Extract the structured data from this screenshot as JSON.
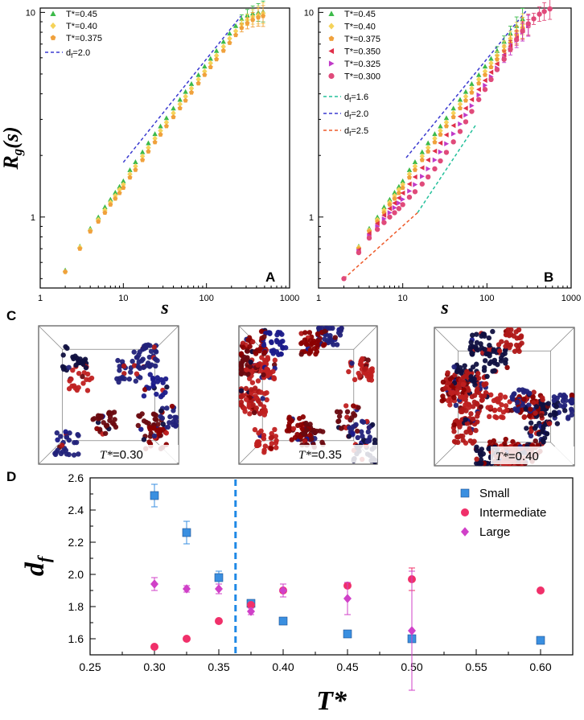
{
  "chart_data": [
    {
      "id": "A",
      "type": "scatter",
      "panel_label": "A",
      "xlabel": "s",
      "ylabel": "R",
      "ylabel_sub": "g",
      "ylabel_suffix": "(s)",
      "xscale": "log",
      "yscale": "log",
      "xlim": [
        1,
        1000
      ],
      "ylim": [
        0.45,
        10.5
      ],
      "xticks": [
        "1",
        "10",
        "100",
        "1000"
      ],
      "yticks": [
        "1",
        "10"
      ],
      "legend_position": "top-left",
      "series": [
        {
          "name": "T*=0.45",
          "marker": "triangle",
          "color": "#3cba4a",
          "x": [
            2,
            3,
            4,
            5,
            6,
            7,
            8,
            9,
            10,
            12,
            14,
            17,
            20,
            24,
            28,
            33,
            40,
            48,
            56,
            66,
            80,
            95,
            112,
            132,
            160,
            190,
            225,
            265,
            310,
            360,
            420,
            480
          ],
          "y": [
            0.55,
            0.72,
            0.88,
            1.0,
            1.12,
            1.22,
            1.32,
            1.41,
            1.5,
            1.7,
            1.86,
            2.08,
            2.3,
            2.55,
            2.78,
            3.05,
            3.4,
            3.75,
            4.1,
            4.48,
            4.95,
            5.45,
            5.95,
            6.5,
            7.2,
            7.9,
            8.6,
            9.3,
            9.7,
            9.9,
            10.0,
            10.1
          ]
        },
        {
          "name": "T*=0.40",
          "marker": "diamond",
          "color": "#f5d35a",
          "x": [
            2,
            3,
            4,
            5,
            6,
            7,
            8,
            9,
            10,
            12,
            14,
            17,
            20,
            24,
            28,
            33,
            40,
            48,
            56,
            66,
            80,
            95,
            112,
            132,
            160,
            190,
            225,
            265,
            310,
            360,
            420,
            480
          ],
          "y": [
            0.54,
            0.71,
            0.86,
            0.97,
            1.08,
            1.18,
            1.27,
            1.36,
            1.44,
            1.62,
            1.77,
            1.98,
            2.18,
            2.42,
            2.64,
            2.9,
            3.22,
            3.56,
            3.88,
            4.25,
            4.7,
            5.15,
            5.65,
            6.15,
            6.8,
            7.45,
            8.1,
            8.75,
            9.2,
            9.5,
            9.7,
            9.9
          ]
        },
        {
          "name": "T*=0.375",
          "marker": "pentagon",
          "color": "#f0a13c",
          "x": [
            2,
            3,
            4,
            5,
            6,
            7,
            8,
            9,
            10,
            12,
            14,
            17,
            20,
            24,
            28,
            33,
            40,
            48,
            56,
            66,
            80,
            95,
            112,
            132,
            160,
            190,
            225,
            265,
            310,
            360,
            420,
            480
          ],
          "y": [
            0.54,
            0.7,
            0.85,
            0.95,
            1.05,
            1.15,
            1.23,
            1.31,
            1.39,
            1.56,
            1.7,
            1.9,
            2.09,
            2.32,
            2.53,
            2.78,
            3.08,
            3.4,
            3.71,
            4.06,
            4.5,
            4.95,
            5.4,
            5.9,
            6.5,
            7.1,
            7.75,
            8.4,
            8.85,
            9.2,
            9.45,
            9.6
          ]
        }
      ],
      "ref_lines": [
        {
          "name": "d_f=2.0",
          "label_main": "d",
          "label_sub": "f",
          "label_tail": "=2.0",
          "color": "#3a3ad0",
          "x": [
            10,
            260
          ],
          "y": [
            1.85,
            9.6
          ]
        }
      ]
    },
    {
      "id": "B",
      "type": "scatter",
      "panel_label": "B",
      "xlabel": "s",
      "xscale": "log",
      "yscale": "log",
      "xlim": [
        1,
        1000
      ],
      "ylim": [
        0.45,
        10.5
      ],
      "xticks": [
        "1",
        "10",
        "100",
        "1000"
      ],
      "yticks": [
        "1",
        "10"
      ],
      "legend_position": "top-left",
      "series": [
        {
          "name": "T*=0.45",
          "marker": "triangle",
          "color": "#3cba4a",
          "x": [
            3,
            4,
            5,
            6,
            7,
            8,
            9,
            10,
            12,
            14,
            17,
            20,
            24,
            28,
            33,
            40,
            48,
            56,
            66,
            80,
            95,
            112,
            132,
            160,
            190,
            225,
            265
          ],
          "y": [
            0.72,
            0.88,
            1.0,
            1.12,
            1.22,
            1.32,
            1.41,
            1.5,
            1.7,
            1.86,
            2.08,
            2.3,
            2.55,
            2.78,
            3.05,
            3.4,
            3.75,
            4.1,
            4.48,
            4.95,
            5.45,
            5.95,
            6.5,
            7.2,
            7.9,
            8.6,
            9.3
          ]
        },
        {
          "name": "T*=0.40",
          "marker": "diamond",
          "color": "#f5d35a",
          "x": [
            3,
            4,
            5,
            6,
            7,
            8,
            9,
            10,
            12,
            14,
            17,
            20,
            24,
            28,
            33,
            40,
            48,
            56,
            66,
            80,
            95,
            112,
            132,
            160,
            190,
            225,
            265
          ],
          "y": [
            0.71,
            0.86,
            0.97,
            1.08,
            1.18,
            1.27,
            1.36,
            1.44,
            1.62,
            1.77,
            1.98,
            2.18,
            2.42,
            2.64,
            2.9,
            3.22,
            3.56,
            3.88,
            4.25,
            4.7,
            5.15,
            5.65,
            6.15,
            6.8,
            7.45,
            8.1,
            8.75
          ]
        },
        {
          "name": "T*=0.375",
          "marker": "pentagon",
          "color": "#f0a13c",
          "x": [
            3,
            4,
            5,
            6,
            7,
            8,
            9,
            10,
            12,
            14,
            17,
            20,
            24,
            28,
            33,
            40,
            48,
            56,
            66,
            80,
            95,
            112,
            132,
            160,
            190,
            225,
            265
          ],
          "y": [
            0.7,
            0.85,
            0.95,
            1.05,
            1.15,
            1.23,
            1.31,
            1.39,
            1.56,
            1.7,
            1.9,
            2.09,
            2.32,
            2.53,
            2.78,
            3.08,
            3.4,
            3.71,
            4.06,
            4.5,
            4.95,
            5.4,
            5.9,
            6.5,
            7.1,
            7.75,
            8.4
          ]
        },
        {
          "name": "T*=0.350",
          "marker": "triangle-left",
          "color": "#e0304a",
          "x": [
            3,
            4,
            5,
            6,
            7,
            8,
            9,
            10,
            12,
            14,
            17,
            20,
            24,
            28,
            33,
            40,
            48,
            56,
            66,
            80,
            95,
            112,
            132,
            160,
            190,
            225,
            265,
            310
          ],
          "y": [
            0.69,
            0.83,
            0.93,
            1.02,
            1.1,
            1.17,
            1.24,
            1.31,
            1.45,
            1.57,
            1.74,
            1.9,
            2.1,
            2.3,
            2.52,
            2.8,
            3.1,
            3.4,
            3.75,
            4.2,
            4.65,
            5.1,
            5.6,
            6.2,
            6.85,
            7.5,
            8.15,
            8.7
          ]
        },
        {
          "name": "T*=0.325",
          "marker": "triangle-right",
          "color": "#c03ac8",
          "x": [
            3,
            4,
            5,
            6,
            7,
            8,
            9,
            10,
            12,
            14,
            17,
            20,
            24,
            28,
            33,
            40,
            48,
            56,
            66,
            80,
            95,
            112,
            132,
            160,
            190,
            225,
            265,
            310
          ],
          "y": [
            0.68,
            0.81,
            0.9,
            0.98,
            1.05,
            1.11,
            1.17,
            1.22,
            1.34,
            1.44,
            1.58,
            1.72,
            1.9,
            2.08,
            2.28,
            2.55,
            2.85,
            3.15,
            3.5,
            3.95,
            4.4,
            4.85,
            5.35,
            5.95,
            6.6,
            7.3,
            8.0,
            8.6
          ]
        },
        {
          "name": "T*=0.300",
          "marker": "circle",
          "color": "#e04a7a",
          "x": [
            2,
            3,
            4,
            5,
            6,
            7,
            8,
            9,
            10,
            12,
            14,
            17,
            20,
            24,
            28,
            33,
            40,
            48,
            56,
            66,
            80,
            95,
            112,
            132,
            160,
            190,
            225,
            265,
            310,
            360,
            420,
            480,
            560
          ],
          "y": [
            0.5,
            0.67,
            0.79,
            0.87,
            0.94,
            1.0,
            1.05,
            1.1,
            1.15,
            1.25,
            1.33,
            1.45,
            1.57,
            1.72,
            1.88,
            2.07,
            2.33,
            2.62,
            2.92,
            3.28,
            3.75,
            4.2,
            4.7,
            5.25,
            5.9,
            6.6,
            7.35,
            8.1,
            8.8,
            9.3,
            9.8,
            10.1,
            10.4
          ]
        }
      ],
      "ref_lines": [
        {
          "name": "d_f=1.6",
          "label_main": "d",
          "label_sub": "f",
          "label_tail": "=1.6",
          "color": "#22c09a",
          "x": [
            15,
            75
          ],
          "y": [
            1.05,
            2.85
          ]
        },
        {
          "name": "d_f=2.0",
          "label_main": "d",
          "label_sub": "f",
          "label_tail": "=2.0",
          "color": "#3a3ad0",
          "x": [
            11,
            300
          ],
          "y": [
            1.95,
            10.3
          ]
        },
        {
          "name": "d_f=2.5",
          "label_main": "d",
          "label_sub": "f",
          "label_tail": "=2.5",
          "color": "#ee5a2a",
          "x": [
            2,
            15
          ],
          "y": [
            0.5,
            1.05
          ]
        }
      ]
    },
    {
      "id": "D",
      "type": "scatter",
      "panel_label": "D",
      "xlabel": "T*",
      "ylabel": "d",
      "ylabel_sub": "f",
      "xlim": [
        0.25,
        0.625
      ],
      "ylim": [
        1.5,
        2.6
      ],
      "xticks": [
        "0.25",
        "0.30",
        "0.35",
        "0.40",
        "0.45",
        "0.50",
        "0.55",
        "0.60"
      ],
      "yticks": [
        "1.6",
        "1.8",
        "2.0",
        "2.2",
        "2.4",
        "2.6"
      ],
      "vline": {
        "x": 0.363,
        "color": "#1e88e5"
      },
      "legend_position": "top-right",
      "series": [
        {
          "name": "Small",
          "marker": "square",
          "color": "#3a8fe0",
          "x": [
            0.3,
            0.325,
            0.35,
            0.375,
            0.4,
            0.45,
            0.5,
            0.6
          ],
          "y": [
            2.49,
            2.26,
            1.98,
            1.82,
            1.71,
            1.63,
            1.6,
            1.59
          ],
          "err": [
            0.07,
            0.07,
            0.04,
            0.02,
            0.01,
            0.01,
            0.02,
            0.02
          ]
        },
        {
          "name": "Intermediate",
          "marker": "circle",
          "color": "#f0306a",
          "x": [
            0.3,
            0.325,
            0.35,
            0.375,
            0.4,
            0.45,
            0.5,
            0.6
          ],
          "y": [
            1.55,
            1.6,
            1.71,
            1.81,
            1.9,
            1.93,
            1.97,
            1.9
          ],
          "err": [
            0.0,
            0.0,
            0.0,
            0.0,
            0.0,
            0.0,
            0.07,
            0.0
          ]
        },
        {
          "name": "Large",
          "marker": "diamond",
          "color": "#d040c8",
          "x": [
            0.3,
            0.325,
            0.35,
            0.375,
            0.4,
            0.45,
            0.5
          ],
          "y": [
            1.94,
            1.91,
            1.91,
            1.77,
            1.9,
            1.85,
            1.65
          ],
          "err": [
            0.04,
            0.02,
            0.03,
            0.02,
            0.04,
            0.1,
            0.37
          ]
        }
      ]
    }
  ],
  "snapshots": {
    "panel_label": "C",
    "items": [
      {
        "temp_prefix": "T*",
        "temp_value": "=0.30"
      },
      {
        "temp_prefix": "T*",
        "temp_value": "=0.35"
      },
      {
        "temp_prefix": "T*",
        "temp_value": "=0.40"
      }
    ],
    "colors": [
      "#8b0000",
      "#b01818",
      "#6a0a10",
      "#1a1a8a",
      "#22227a",
      "#101040",
      "#c02020"
    ]
  }
}
